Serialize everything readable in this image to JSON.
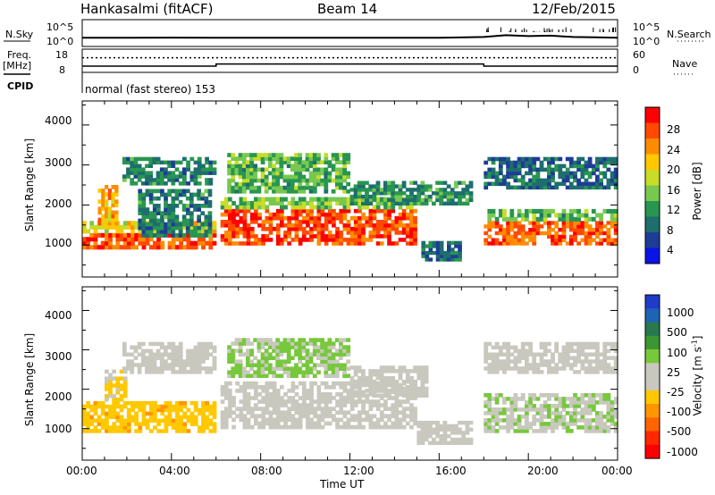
{
  "header": {
    "station": "Hankasalmi (fitACF)",
    "beam": "Beam 14",
    "date": "12/Feb/2015"
  },
  "strips": {
    "nsky_label": "N.Sky",
    "nsky_ticks": [
      "10^5",
      "10^0"
    ],
    "nsearch_label": "N.Search",
    "nsearch_ticks": [
      "10^5",
      "10^0"
    ],
    "freq_label": "Freq.",
    "freq_unit": "[MHz]",
    "freq_ticks": [
      "18",
      "8"
    ],
    "nave_label": "Nave",
    "nave_ticks": [
      "60",
      "0"
    ],
    "cpid_label": "CPID",
    "cpid_text": "normal (fast stereo) 153"
  },
  "axes": {
    "ylabel": "Slant Range [km]",
    "xlabel": "Time UT",
    "yticks": [
      "4000",
      "3000",
      "2000",
      "1000"
    ],
    "xticks": [
      "00:00",
      "04:00",
      "08:00",
      "12:00",
      "16:00",
      "20:00",
      "00:00"
    ]
  },
  "colorbars": {
    "power": {
      "label": "Power [dB]",
      "ticks": [
        "28",
        "24",
        "20",
        "16",
        "12",
        "8",
        "4"
      ],
      "colors": [
        "#ff0000",
        "#ff4a00",
        "#ff8c00",
        "#ffc800",
        "#c8dc28",
        "#78c850",
        "#289650",
        "#1e6e6e",
        "#1e3c96",
        "#0a14e6"
      ]
    },
    "velocity": {
      "label": "Velocity [m s",
      "label_sup": "-1",
      "label_end": "]",
      "ticks": [
        "1000",
        "500",
        "100",
        "25",
        "-25",
        "-100",
        "-500",
        "-1000"
      ],
      "colors": [
        "#1e3cc8",
        "#1e64b4",
        "#287850",
        "#3c9632",
        "#78c83c",
        "#c8c8be",
        "#c8c8be",
        "#ffc800",
        "#ff9600",
        "#ff6400",
        "#ff2800",
        "#ff0000"
      ]
    }
  },
  "chart_data": [
    {
      "type": "line",
      "title": "N.Sky / N.Search",
      "x": [
        0,
        2,
        4,
        6,
        8,
        10,
        12,
        14,
        16,
        18,
        19,
        20,
        21,
        22,
        23,
        24
      ],
      "series": [
        {
          "name": "N.Sky",
          "values": [
            1.6,
            1.6,
            1.65,
            1.6,
            1.6,
            1.6,
            1.6,
            1.6,
            1.6,
            1.8,
            2.2,
            2.0,
            2.1,
            1.8,
            1.7,
            1.6
          ]
        }
      ],
      "ylim": [
        0,
        5
      ]
    },
    {
      "type": "line",
      "title": "Freq. / Nave",
      "x": [
        0,
        6,
        6,
        18,
        18,
        24
      ],
      "series": [
        {
          "name": "Freq.",
          "values": [
            10,
            10,
            11.2,
            11.2,
            10,
            10
          ]
        },
        {
          "name": "Nave",
          "values": [
            40,
            40,
            40,
            40,
            40,
            40
          ]
        }
      ],
      "ylim": [
        8,
        18
      ],
      "y2lim": [
        0,
        60
      ]
    },
    {
      "type": "heatmap",
      "title": "Power",
      "xlabel": "Time UT",
      "ylabel": "Slant Range [km]",
      "xlim": [
        0,
        24
      ],
      "ylim": [
        200,
        4600
      ],
      "zlim": [
        0,
        30
      ],
      "z_label": "Power [dB]",
      "regions": [
        {
          "t0": 0.0,
          "t1": 6.0,
          "r0": 900,
          "r1": 1300,
          "z": 26
        },
        {
          "t0": 0.0,
          "t1": 6.0,
          "r0": 1300,
          "r1": 1600,
          "z": 18
        },
        {
          "t0": 0.7,
          "t1": 1.6,
          "r0": 1500,
          "r1": 2500,
          "z": 22
        },
        {
          "t0": 1.8,
          "t1": 6.0,
          "r0": 2500,
          "r1": 3200,
          "z": 8
        },
        {
          "t0": 2.5,
          "t1": 5.8,
          "r0": 1200,
          "r1": 2400,
          "z": 8
        },
        {
          "t0": 6.2,
          "t1": 15.0,
          "r0": 1000,
          "r1": 1900,
          "z": 27
        },
        {
          "t0": 6.2,
          "t1": 15.0,
          "r0": 1900,
          "r1": 2200,
          "z": 14
        },
        {
          "t0": 6.5,
          "t1": 12.0,
          "r0": 2300,
          "r1": 3300,
          "z": 12
        },
        {
          "t0": 12.0,
          "t1": 17.5,
          "r0": 2000,
          "r1": 2600,
          "z": 9
        },
        {
          "t0": 15.2,
          "t1": 17.0,
          "r0": 600,
          "r1": 1100,
          "z": 6
        },
        {
          "t0": 18.0,
          "t1": 24.0,
          "r0": 1000,
          "r1": 1600,
          "z": 26
        },
        {
          "t0": 18.0,
          "t1": 24.0,
          "r0": 1600,
          "r1": 1900,
          "z": 12
        },
        {
          "t0": 18.0,
          "t1": 24.0,
          "r0": 2400,
          "r1": 3200,
          "z": 6
        }
      ]
    },
    {
      "type": "heatmap",
      "title": "Velocity",
      "xlabel": "Time UT",
      "ylabel": "Slant Range [km]",
      "xlim": [
        0,
        24
      ],
      "ylim": [
        200,
        4600
      ],
      "zlim": [
        -1000,
        1000
      ],
      "z_label": "Velocity [m s-1]",
      "regions": [
        {
          "t0": 0.0,
          "t1": 6.0,
          "r0": 900,
          "r1": 1700,
          "z": -300
        },
        {
          "t0": 1.0,
          "t1": 2.0,
          "r0": 1700,
          "r1": 2500,
          "z": -200
        },
        {
          "t0": 1.8,
          "t1": 6.0,
          "r0": 2400,
          "r1": 3200,
          "z": 50
        },
        {
          "t0": 6.2,
          "t1": 15.0,
          "r0": 1000,
          "r1": 2200,
          "z": 0
        },
        {
          "t0": 6.5,
          "t1": 12.0,
          "r0": 2300,
          "r1": 3300,
          "z": 200
        },
        {
          "t0": 12.0,
          "t1": 15.5,
          "r0": 1800,
          "r1": 2600,
          "z": 60
        },
        {
          "t0": 15.0,
          "t1": 17.5,
          "r0": 600,
          "r1": 1200,
          "z": 80
        },
        {
          "t0": 18.0,
          "t1": 24.0,
          "r0": 900,
          "r1": 1900,
          "z": 150
        },
        {
          "t0": 18.0,
          "t1": 24.0,
          "r0": 2400,
          "r1": 3200,
          "z": 0
        }
      ]
    }
  ]
}
